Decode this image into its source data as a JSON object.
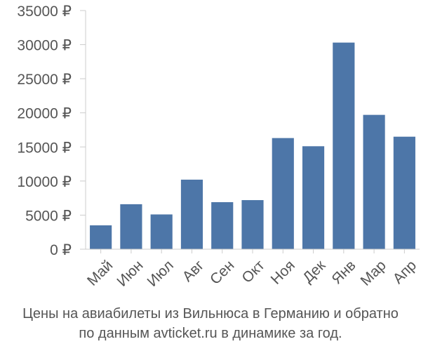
{
  "chart_data": {
    "type": "bar",
    "title": "",
    "xlabel": "",
    "ylabel": "",
    "categories": [
      "Май",
      "Июн",
      "Июл",
      "Авг",
      "Сен",
      "Окт",
      "Ноя",
      "Дек",
      "Янв",
      "Мар",
      "Апр"
    ],
    "values": [
      3500,
      6600,
      5100,
      10200,
      6900,
      7200,
      16300,
      15100,
      30300,
      19700,
      16500
    ],
    "ylim": [
      0,
      35000
    ],
    "yticks": [
      0,
      5000,
      10000,
      15000,
      20000,
      25000,
      30000,
      35000
    ],
    "ytick_labels": [
      "0 ₽",
      "5000 ₽",
      "10000 ₽",
      "15000 ₽",
      "20000 ₽",
      "25000 ₽",
      "30000 ₽",
      "35000 ₽"
    ],
    "bar_color": "#4d76a8",
    "grid": false,
    "legend": "none"
  },
  "caption": {
    "line1": "Цены на авиабилеты из Вильнюса в Германию и обратно",
    "line2": "по данным avticket.ru в динамике за год."
  }
}
